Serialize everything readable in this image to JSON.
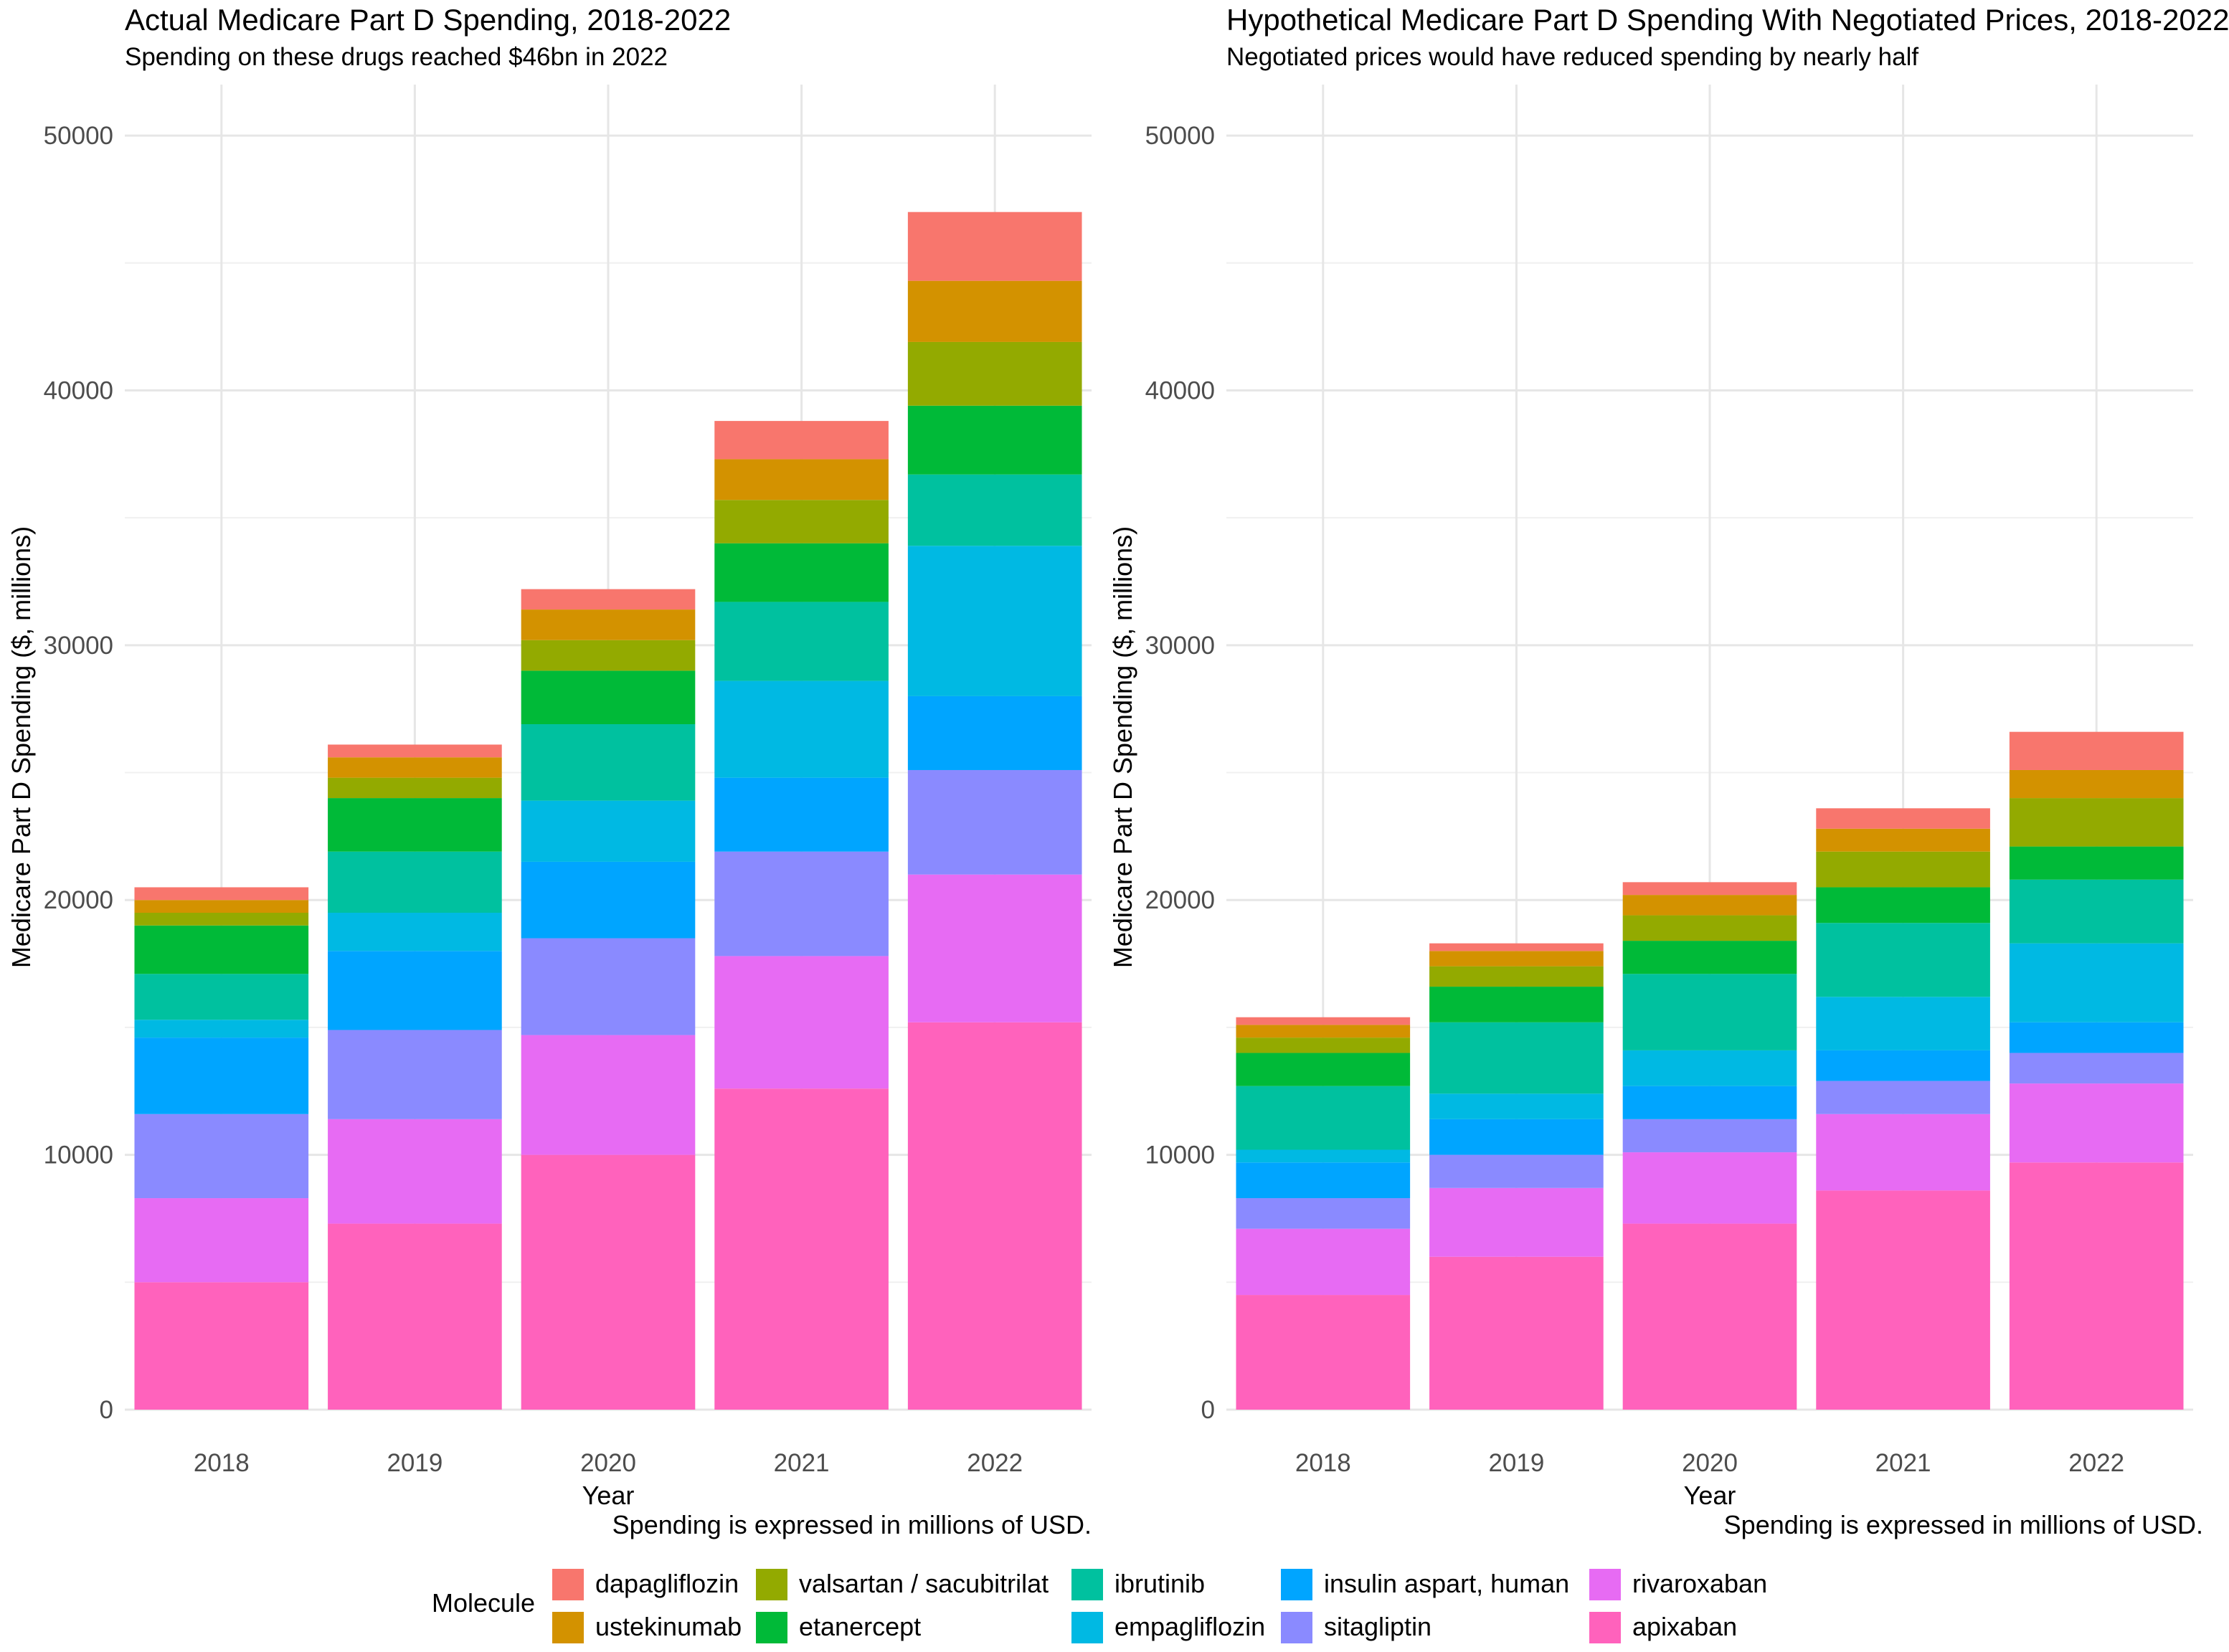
{
  "legend": {
    "title": "Molecule",
    "items": [
      {
        "name": "dapagliflozin",
        "color": "#F8766D"
      },
      {
        "name": "ustekinumab",
        "color": "#D39200"
      },
      {
        "name": "valsartan / sacubitrilat",
        "color": "#93AA00"
      },
      {
        "name": "etanercept",
        "color": "#00BA38"
      },
      {
        "name": "ibrutinib",
        "color": "#00C19F"
      },
      {
        "name": "empagliflozin",
        "color": "#00B9E3"
      },
      {
        "name": "insulin aspart, human",
        "color": "#00A5FF"
      },
      {
        "name": "sitagliptin",
        "color": "#8A8AFF"
      },
      {
        "name": "rivaroxaban",
        "color": "#E76BF3"
      },
      {
        "name": "apixaban",
        "color": "#FF62BC"
      }
    ]
  },
  "chart_data": [
    {
      "type": "bar",
      "stacked": true,
      "title": "Actual Medicare Part D Spending, 2018-2022",
      "subtitle": "Spending on these drugs reached $46bn in 2022",
      "caption": "Spending is expressed in millions of USD.",
      "xlabel": "Year",
      "ylabel": "Medicare Part D Spending ($, millions)",
      "ylim": [
        0,
        52000
      ],
      "yticks": [
        0,
        10000,
        20000,
        30000,
        40000,
        50000
      ],
      "grid": true,
      "legend_position": "bottom",
      "categories": [
        "2018",
        "2019",
        "2020",
        "2021",
        "2022"
      ],
      "series": [
        {
          "name": "apixaban",
          "values": [
            5000,
            7300,
            10000,
            12600,
            15200
          ]
        },
        {
          "name": "rivaroxaban",
          "values": [
            3300,
            4100,
            4700,
            5200,
            5800
          ]
        },
        {
          "name": "sitagliptin",
          "values": [
            3300,
            3500,
            3800,
            4100,
            4100
          ]
        },
        {
          "name": "insulin aspart, human",
          "values": [
            3000,
            3100,
            3000,
            2900,
            2900
          ]
        },
        {
          "name": "empagliflozin",
          "values": [
            700,
            1500,
            2400,
            3800,
            5900
          ]
        },
        {
          "name": "ibrutinib",
          "values": [
            1800,
            2400,
            3000,
            3100,
            2800
          ]
        },
        {
          "name": "etanercept",
          "values": [
            1900,
            2100,
            2100,
            2300,
            2700
          ]
        },
        {
          "name": "valsartan / sacubitrilat",
          "values": [
            500,
            800,
            1200,
            1700,
            2500
          ]
        },
        {
          "name": "ustekinumab",
          "values": [
            500,
            800,
            1200,
            1600,
            2400
          ]
        },
        {
          "name": "dapagliflozin",
          "values": [
            500,
            500,
            800,
            1500,
            2700
          ]
        }
      ]
    },
    {
      "type": "bar",
      "stacked": true,
      "title": "Hypothetical Medicare Part D Spending With Negotiated Prices, 2018-2022",
      "subtitle": "Negotiated prices would have reduced spending by nearly half",
      "caption": "Spending is expressed in millions of USD.",
      "xlabel": "Year",
      "ylabel": "Medicare Part D Spending ($, millions)",
      "ylim": [
        0,
        52000
      ],
      "yticks": [
        0,
        10000,
        20000,
        30000,
        40000,
        50000
      ],
      "grid": true,
      "legend_position": "bottom",
      "categories": [
        "2018",
        "2019",
        "2020",
        "2021",
        "2022"
      ],
      "series": [
        {
          "name": "apixaban",
          "values": [
            4500,
            6000,
            7300,
            8600,
            9700
          ]
        },
        {
          "name": "rivaroxaban",
          "values": [
            2600,
            2700,
            2800,
            3000,
            3100
          ]
        },
        {
          "name": "sitagliptin",
          "values": [
            1200,
            1300,
            1300,
            1300,
            1200
          ]
        },
        {
          "name": "insulin aspart, human",
          "values": [
            1400,
            1400,
            1300,
            1200,
            1200
          ]
        },
        {
          "name": "empagliflozin",
          "values": [
            500,
            1000,
            1400,
            2100,
            3100
          ]
        },
        {
          "name": "ibrutinib",
          "values": [
            2500,
            2800,
            3000,
            2900,
            2500
          ]
        },
        {
          "name": "etanercept",
          "values": [
            1300,
            1400,
            1300,
            1400,
            1300
          ]
        },
        {
          "name": "valsartan / sacubitrilat",
          "values": [
            600,
            800,
            1000,
            1400,
            1900
          ]
        },
        {
          "name": "ustekinumab",
          "values": [
            500,
            600,
            800,
            900,
            1100
          ]
        },
        {
          "name": "dapagliflozin",
          "values": [
            300,
            300,
            500,
            800,
            1500
          ]
        }
      ]
    }
  ]
}
